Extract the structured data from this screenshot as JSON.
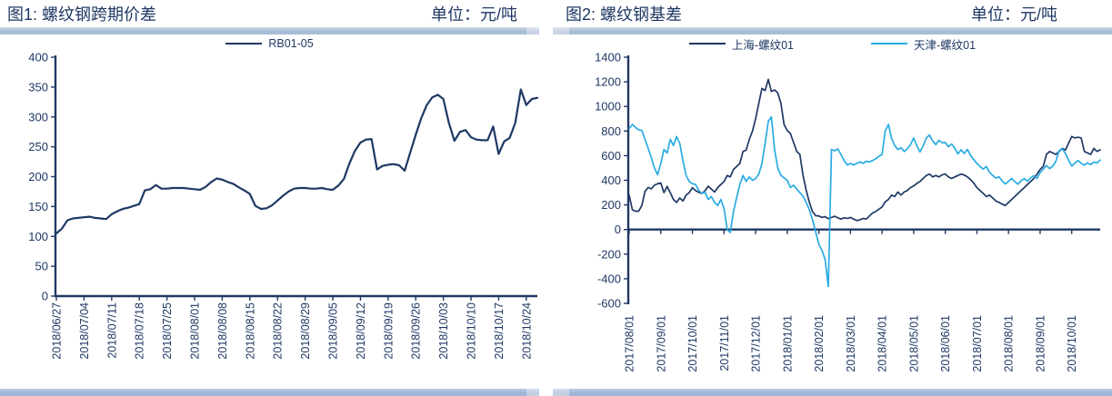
{
  "panels": [
    {
      "title": "图1: 螺纹钢跨期价差",
      "unit": "单位：元/吨"
    },
    {
      "title": "图2: 螺纹钢基差",
      "unit": "单位：元/吨"
    }
  ],
  "colors": {
    "navy": "#1f3864",
    "cyan": "#29abe2",
    "axis": "#1f3864",
    "text": "#1f3864",
    "divider_top": "#a9bdd6",
    "divider_light": "#c8d4e4",
    "divider_bottom": "#9db6d8"
  },
  "chart_data": [
    {
      "type": "line",
      "title": "图1: 螺纹钢跨期价差",
      "unit": "单位：元/吨",
      "xlabel": "",
      "ylabel": "",
      "ylim": [
        0,
        400
      ],
      "ytick_step": 50,
      "y_tick_labels": [
        "0",
        "50",
        "100",
        "150",
        "200",
        "250",
        "300",
        "350",
        "400"
      ],
      "grid": false,
      "legend_position": "top-center",
      "x_axis": "bottom",
      "x_label_rotation": -90,
      "tick_every": 5,
      "stroke_width": 2.2,
      "x_tick_labels": [
        "2018/06/27",
        "2018/07/04",
        "2018/07/11",
        "2018/07/18",
        "2018/07/25",
        "2018/08/01",
        "2018/08/08",
        "2018/08/15",
        "2018/08/22",
        "2018/08/29",
        "2018/09/05",
        "2018/09/12",
        "2018/09/19",
        "2018/09/26",
        "2018/10/03",
        "2018/10/10",
        "2018/10/17",
        "2018/10/24"
      ],
      "series": [
        {
          "name": "RB01-05",
          "color": "#1f3864",
          "values": [
            105,
            113,
            127,
            130,
            131,
            132,
            133,
            131,
            130,
            129,
            137,
            142,
            146,
            148,
            151,
            154,
            177,
            179,
            186,
            180,
            180,
            181,
            181,
            181,
            180,
            179,
            178,
            183,
            191,
            197,
            195,
            191,
            188,
            182,
            177,
            171,
            151,
            146,
            147,
            152,
            160,
            168,
            175,
            180,
            181,
            181,
            180,
            180,
            181,
            179,
            178,
            185,
            196,
            222,
            243,
            257,
            262,
            263,
            212,
            218,
            220,
            221,
            219,
            210,
            240,
            270,
            298,
            320,
            333,
            337,
            330,
            290,
            260,
            275,
            278,
            266,
            262,
            261,
            261,
            284,
            238,
            259,
            265,
            290,
            346,
            320,
            330,
            332
          ]
        }
      ]
    },
    {
      "type": "line",
      "title": "图2: 螺纹钢基差",
      "unit": "单位：元/吨",
      "xlabel": "",
      "ylabel": "",
      "ylim": [
        -600,
        1400
      ],
      "ytick_step": 200,
      "y_tick_labels": [
        "-600",
        "-400",
        "-200",
        "0",
        "200",
        "400",
        "600",
        "800",
        "1000",
        "1200",
        "1400"
      ],
      "grid": false,
      "legend_position": "top-center",
      "x_axis": "zero",
      "x_label_rotation": -90,
      "tick_every": 10,
      "stroke_width": 1.7,
      "x_tick_labels": [
        "2017/08/01",
        "2017/09/01",
        "2017/10/01",
        "2017/11/01",
        "2017/12/01",
        "2018/01/01",
        "2018/02/01",
        "2018/03/01",
        "2018/04/01",
        "2018/05/01",
        "2018/06/01",
        "2018/07/01",
        "2018/08/01",
        "2018/09/01",
        "2018/10/01"
      ],
      "series": [
        {
          "name": "上海-螺纹01",
          "color": "#1f3864",
          "values": [
            280,
            160,
            148,
            150,
            195,
            310,
            342,
            330,
            360,
            372,
            378,
            300,
            350,
            300,
            244,
            220,
            256,
            232,
            280,
            300,
            340,
            316,
            302,
            293,
            315,
            352,
            328,
            305,
            340,
            366,
            390,
            439,
            427,
            488,
            512,
            537,
            634,
            646,
            732,
            800,
            902,
            1024,
            1146,
            1130,
            1220,
            1122,
            1134,
            1110,
            1024,
            854,
            805,
            780,
            707,
            634,
            610,
            440,
            317,
            220,
            146,
            112,
            110,
            98,
            105,
            88,
            98,
            108,
            95,
            85,
            95,
            90,
            98,
            85,
            73,
            80,
            90,
            85,
            110,
            134,
            146,
            165,
            183,
            225,
            244,
            280,
            268,
            305,
            280,
            305,
            317,
            341,
            354,
            375,
            390,
            415,
            439,
            451,
            427,
            439,
            427,
            445,
            451,
            427,
            415,
            427,
            439,
            451,
            442,
            427,
            405,
            378,
            341,
            317,
            293,
            268,
            280,
            256,
            232,
            220,
            207,
            195,
            220,
            244,
            268,
            293,
            317,
            341,
            366,
            390,
            415,
            450,
            488,
            512,
            610,
            634,
            622,
            610,
            634,
            659,
            646,
            700,
            756,
            744,
            750,
            744,
            634,
            622,
            610,
            659,
            634,
            648
          ]
        },
        {
          "name": "天津-螺纹01",
          "color": "#29abe2",
          "values": [
            820,
            854,
            829,
            810,
            805,
            732,
            659,
            585,
            500,
            445,
            537,
            650,
            622,
            732,
            683,
            756,
            700,
            560,
            440,
            390,
            372,
            366,
            317,
            293,
            305,
            244,
            268,
            220,
            195,
            244,
            171,
            0,
            -24,
            146,
            260,
            366,
            439,
            390,
            427,
            400,
            415,
            450,
            537,
            700,
            880,
            915,
            650,
            500,
            440,
            420,
            400,
            341,
            360,
            330,
            300,
            270,
            220,
            160,
            80,
            -20,
            -120,
            -171,
            -244,
            -463,
            650,
            640,
            655,
            610,
            560,
            524,
            537,
            524,
            537,
            549,
            537,
            555,
            549,
            561,
            575,
            595,
            610,
            800,
            854,
            740,
            683,
            650,
            665,
            634,
            655,
            690,
            744,
            680,
            630,
            680,
            744,
            768,
            720,
            690,
            725,
            705,
            707,
            672,
            695,
            660,
            615,
            648,
            618,
            652,
            600,
            568,
            537,
            512,
            490,
            512,
            465,
            440,
            418,
            428,
            395,
            370,
            392,
            415,
            388,
            368,
            398,
            415,
            392,
            420,
            438,
            415,
            463,
            490,
            520,
            495,
            515,
            555,
            640,
            655,
            618,
            565,
            515,
            540,
            561,
            537,
            524,
            540,
            528,
            548,
            540,
            565
          ]
        }
      ]
    }
  ]
}
